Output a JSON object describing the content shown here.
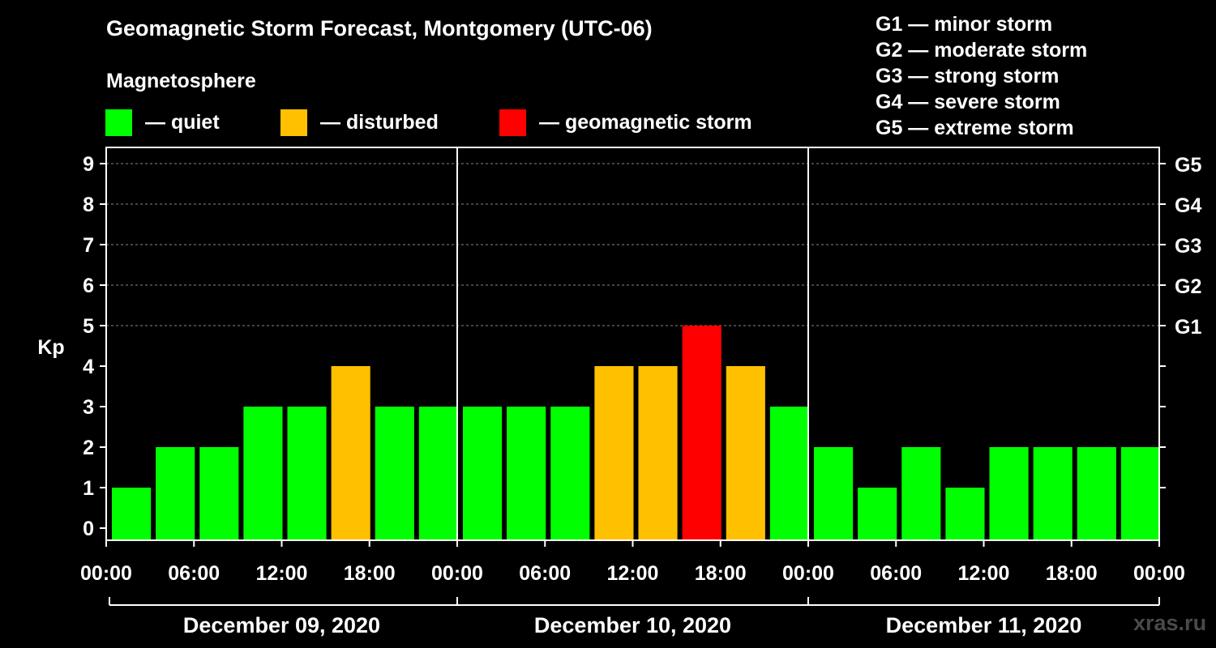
{
  "colors": {
    "quiet": "#00ff00",
    "disturbed": "#ffc000",
    "storm": "#ff0000",
    "background": "#000000",
    "watermark": "#4a4a4a"
  },
  "legend": {
    "heading": "Magnetosphere",
    "items": [
      {
        "label": "— quiet",
        "color": "#00ff00"
      },
      {
        "label": "— disturbed",
        "color": "#ffc000"
      },
      {
        "label": "— geomagnetic storm",
        "color": "#ff0000"
      }
    ]
  },
  "storm_scale": [
    "G1 — minor storm",
    "G2 — moderate storm",
    "G3 — strong storm",
    "G4 — severe storm",
    "G5 — extreme storm"
  ],
  "watermark": "xras.ru",
  "chart_data": {
    "type": "bar",
    "title": "Geomagnetic Storm Forecast, Montgomery (UTC-06)",
    "ylabel": "Kp",
    "ylim": [
      0,
      9
    ],
    "yticks": [
      "0",
      "1",
      "2",
      "3",
      "4",
      "5",
      "6",
      "7",
      "8",
      "9"
    ],
    "right_ticks": [
      {
        "kp": 5,
        "label": "G1"
      },
      {
        "kp": 6,
        "label": "G2"
      },
      {
        "kp": 7,
        "label": "G3"
      },
      {
        "kp": 8,
        "label": "G4"
      },
      {
        "kp": 9,
        "label": "G5"
      }
    ],
    "grid": "horizontal dashed",
    "x_tick_labels": [
      "00:00",
      "06:00",
      "12:00",
      "18:00",
      "00:00",
      "06:00",
      "12:00",
      "18:00",
      "00:00",
      "06:00",
      "12:00",
      "18:00",
      "00:00"
    ],
    "days": [
      "December 09, 2020",
      "December 10, 2020",
      "December 11, 2020"
    ],
    "interval_hours": 3,
    "values": [
      1,
      2,
      2,
      3,
      3,
      4,
      3,
      3,
      3,
      3,
      3,
      4,
      4,
      5,
      4,
      3,
      2,
      1,
      2,
      1,
      2,
      2,
      2,
      2
    ],
    "levels": [
      "quiet",
      "quiet",
      "quiet",
      "quiet",
      "quiet",
      "disturbed",
      "quiet",
      "quiet",
      "quiet",
      "quiet",
      "quiet",
      "disturbed",
      "disturbed",
      "storm",
      "disturbed",
      "quiet",
      "quiet",
      "quiet",
      "quiet",
      "quiet",
      "quiet",
      "quiet",
      "quiet",
      "quiet"
    ]
  }
}
